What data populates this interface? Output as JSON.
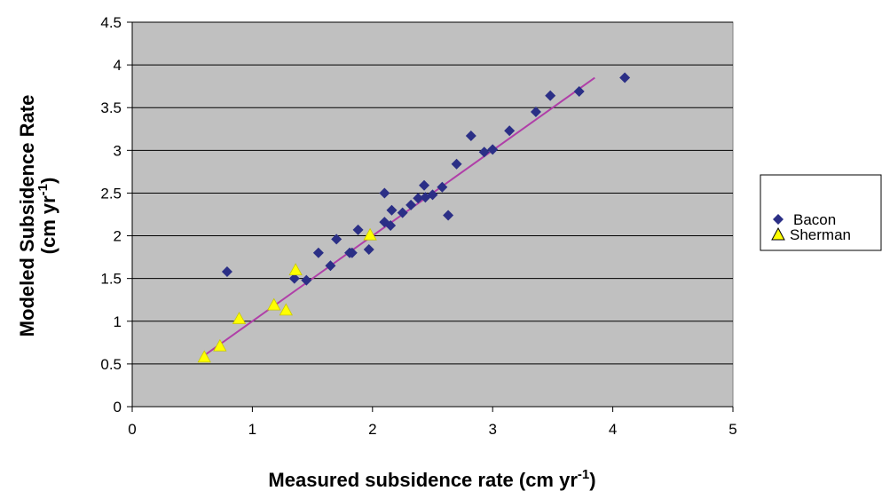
{
  "chart_data": {
    "type": "scatter",
    "xlabel": {
      "main": "Measured subsidence rate (cm yr",
      "sup": "-1",
      "close": ")"
    },
    "ylabel": {
      "line1": "Modeled Subsidence Rate",
      "line2_main": "(cm yr",
      "line2_sup": "-1",
      "line2_close": ")"
    },
    "xlim": [
      0,
      5
    ],
    "ylim": [
      0,
      4.5
    ],
    "xticks": [
      "0",
      "1",
      "2",
      "3",
      "4",
      "5"
    ],
    "yticks": [
      "0",
      "0.5",
      "1",
      "1.5",
      "2",
      "2.5",
      "3",
      "3.5",
      "4",
      "4.5"
    ],
    "grid": "horizontal",
    "plot_background": "#c0c0c0",
    "legend_position": "right",
    "series": [
      {
        "name": "Bacon",
        "marker": "diamond",
        "color": "#2b2f86",
        "points": [
          [
            0.79,
            1.58
          ],
          [
            1.35,
            1.5
          ],
          [
            1.45,
            1.48
          ],
          [
            1.55,
            1.8
          ],
          [
            1.65,
            1.65
          ],
          [
            1.7,
            1.96
          ],
          [
            1.81,
            1.8
          ],
          [
            1.83,
            1.8
          ],
          [
            1.88,
            2.07
          ],
          [
            1.97,
            1.84
          ],
          [
            2.1,
            2.5
          ],
          [
            2.1,
            2.16
          ],
          [
            2.15,
            2.12
          ],
          [
            2.16,
            2.3
          ],
          [
            2.25,
            2.27
          ],
          [
            2.32,
            2.36
          ],
          [
            2.38,
            2.44
          ],
          [
            2.43,
            2.59
          ],
          [
            2.44,
            2.45
          ],
          [
            2.5,
            2.48
          ],
          [
            2.58,
            2.57
          ],
          [
            2.63,
            2.24
          ],
          [
            2.7,
            2.84
          ],
          [
            2.82,
            3.17
          ],
          [
            2.93,
            2.98
          ],
          [
            3.0,
            3.01
          ],
          [
            3.14,
            3.23
          ],
          [
            3.36,
            3.45
          ],
          [
            3.48,
            3.64
          ],
          [
            3.72,
            3.69
          ],
          [
            4.1,
            3.85
          ]
        ]
      },
      {
        "name": "Sherman",
        "marker": "triangle",
        "color": "#ffff00",
        "points": [
          [
            0.6,
            0.58
          ],
          [
            0.73,
            0.71
          ],
          [
            0.89,
            1.03
          ],
          [
            1.18,
            1.19
          ],
          [
            1.28,
            1.13
          ],
          [
            1.36,
            1.6
          ],
          [
            1.98,
            2.01
          ]
        ]
      }
    ],
    "trendline": {
      "color": "#b03fa8",
      "from": [
        0.6,
        0.6
      ],
      "to": [
        3.85,
        3.85
      ]
    }
  }
}
